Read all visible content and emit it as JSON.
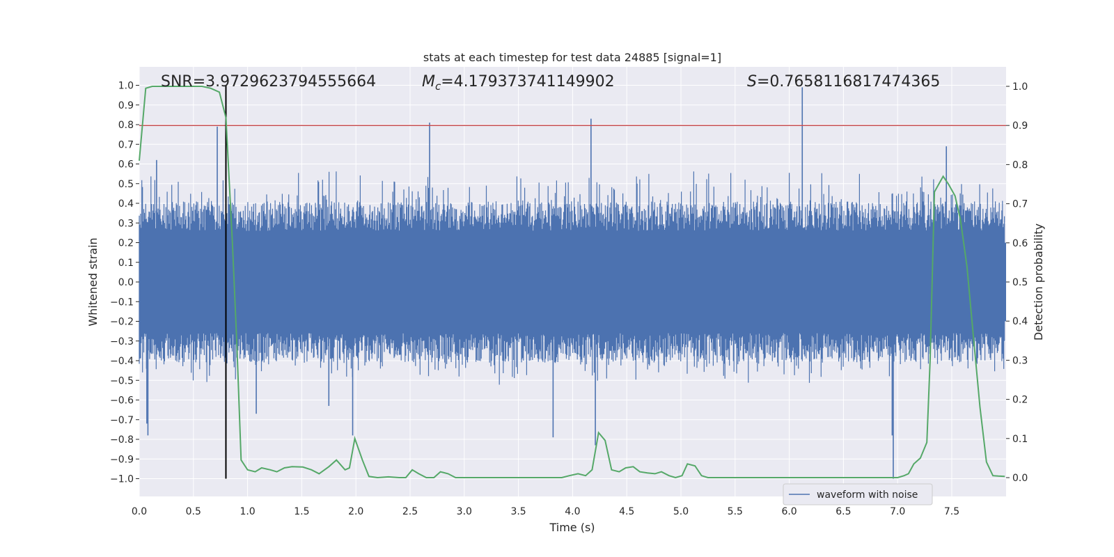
{
  "chart_data": {
    "type": "line",
    "title": "stats at each timestep for test data 24885 [signal=1]",
    "xlabel": "Time (s)",
    "ylabel_left": "Whitened strain",
    "ylabel_right": "Detection probability",
    "xlim": [
      0,
      8
    ],
    "ylim_left": [
      -1.1,
      1.1
    ],
    "ylim_right": [
      -0.05,
      1.05
    ],
    "x_ticks": [
      "0.0",
      "0.5",
      "1.0",
      "1.5",
      "2.0",
      "2.5",
      "3.0",
      "3.5",
      "4.0",
      "4.5",
      "5.0",
      "5.5",
      "6.0",
      "6.5",
      "7.0",
      "7.5"
    ],
    "y_ticks_left": [
      "1.0",
      "0.9",
      "0.8",
      "0.7",
      "0.6",
      "0.5",
      "0.4",
      "0.3",
      "0.2",
      "0.1",
      "0.0",
      "-0.1",
      "-0.2",
      "-0.3",
      "-0.4",
      "-0.5",
      "-0.6",
      "-0.7",
      "-0.8",
      "-0.9",
      "-1.0"
    ],
    "y_ticks_right": [
      "1.0",
      "0.9",
      "0.8",
      "0.7",
      "0.6",
      "0.5",
      "0.4",
      "0.3",
      "0.2",
      "0.1",
      "0.0"
    ],
    "annotations": {
      "snr": "SNR=3.9729623794555664",
      "mc_symbol": "M",
      "mc_sub": "c",
      "mc_value": "=4.179373741149902",
      "s_symbol": "S",
      "s_value": "=0.7658116817474365"
    },
    "threshold_y_right": 0.9,
    "marker_x": 0.8,
    "colors": {
      "waveform": "#4c72b0",
      "probability": "#55a868",
      "threshold": "#c44e52",
      "marker": "#000000",
      "plot_bg": "#eaeaf2",
      "grid": "#ffffff"
    },
    "legend": [
      "waveform with noise"
    ],
    "series": [
      {
        "name": "waveform with noise",
        "axis": "left",
        "envelope_top": 0.55,
        "envelope_bottom": -0.5,
        "spikes": [
          {
            "x": 0.07,
            "y": -0.72
          },
          {
            "x": 0.08,
            "y": -0.78
          },
          {
            "x": 0.16,
            "y": 0.62
          },
          {
            "x": 0.72,
            "y": 0.79
          },
          {
            "x": 1.08,
            "y": -0.67
          },
          {
            "x": 1.75,
            "y": -0.63
          },
          {
            "x": 1.97,
            "y": -0.78
          },
          {
            "x": 2.68,
            "y": 0.81
          },
          {
            "x": 3.82,
            "y": -0.79
          },
          {
            "x": 4.17,
            "y": 0.83
          },
          {
            "x": 4.21,
            "y": -0.83
          },
          {
            "x": 6.12,
            "y": 0.99
          },
          {
            "x": 6.95,
            "y": -0.78
          },
          {
            "x": 6.96,
            "y": -1.0
          },
          {
            "x": 7.45,
            "y": 0.69
          }
        ]
      },
      {
        "name": "detection probability",
        "axis": "right",
        "x": [
          0.0,
          0.06,
          0.12,
          0.18,
          0.3,
          0.45,
          0.58,
          0.66,
          0.74,
          0.8,
          0.86,
          0.9,
          0.94,
          1.0,
          1.07,
          1.13,
          1.21,
          1.27,
          1.34,
          1.41,
          1.51,
          1.59,
          1.66,
          1.75,
          1.82,
          1.9,
          1.94,
          1.99,
          2.06,
          2.12,
          2.2,
          2.3,
          2.4,
          2.46,
          2.52,
          2.58,
          2.65,
          2.72,
          2.78,
          2.85,
          2.92,
          3.0,
          3.1,
          3.2,
          3.3,
          3.4,
          3.5,
          3.6,
          3.7,
          3.8,
          3.9,
          3.97,
          4.05,
          4.12,
          4.18,
          4.24,
          4.3,
          4.36,
          4.43,
          4.49,
          4.56,
          4.62,
          4.69,
          4.76,
          4.82,
          4.89,
          4.95,
          5.01,
          5.06,
          5.13,
          5.19,
          5.25,
          5.35,
          5.5,
          5.7,
          5.9,
          6.1,
          6.3,
          6.5,
          6.7,
          6.9,
          7.0,
          7.06,
          7.1,
          7.15,
          7.21,
          7.27,
          7.3,
          7.34,
          7.38,
          7.42,
          7.47,
          7.53,
          7.58,
          7.64,
          7.7,
          7.76,
          7.82,
          7.88,
          7.93,
          7.99
        ],
        "y": [
          0.81,
          0.995,
          1.0,
          1.0,
          1.0,
          1.0,
          1.0,
          0.995,
          0.985,
          0.92,
          0.6,
          0.35,
          0.045,
          0.02,
          0.015,
          0.025,
          0.02,
          0.015,
          0.025,
          0.028,
          0.027,
          0.02,
          0.01,
          0.028,
          0.045,
          0.02,
          0.025,
          0.1,
          0.045,
          0.003,
          0.0,
          0.002,
          0.0,
          0.0,
          0.02,
          0.01,
          0.0,
          0.0,
          0.015,
          0.01,
          0.0,
          0.0,
          0.0,
          0.0,
          0.0,
          0.0,
          0.0,
          0.0,
          0.0,
          0.0,
          0.0,
          0.005,
          0.01,
          0.005,
          0.02,
          0.115,
          0.095,
          0.02,
          0.015,
          0.025,
          0.028,
          0.015,
          0.012,
          0.01,
          0.015,
          0.005,
          0.0,
          0.005,
          0.035,
          0.03,
          0.005,
          0.0,
          0.0,
          0.0,
          0.0,
          0.0,
          0.0,
          0.0,
          0.0,
          0.0,
          0.0,
          0.0,
          0.005,
          0.01,
          0.035,
          0.05,
          0.09,
          0.3,
          0.73,
          0.75,
          0.77,
          0.75,
          0.72,
          0.66,
          0.54,
          0.36,
          0.18,
          0.04,
          0.005,
          0.004,
          0.003
        ]
      }
    ]
  }
}
